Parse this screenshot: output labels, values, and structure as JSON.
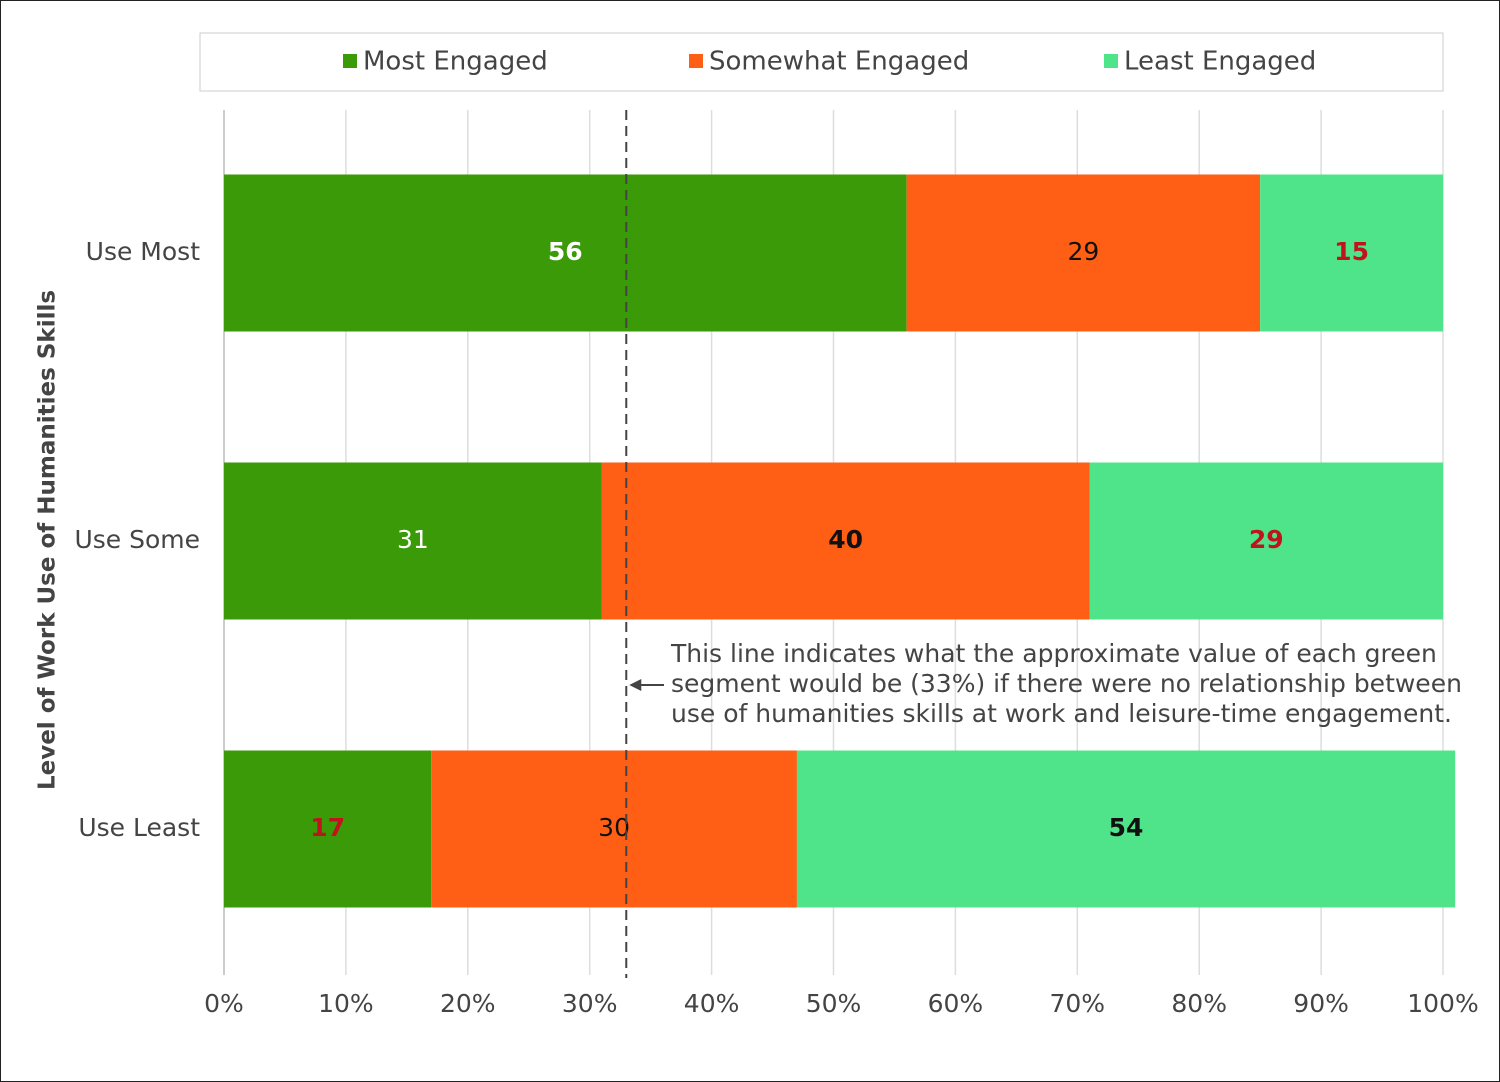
{
  "chart_data": {
    "type": "stacked-bar-horizontal",
    "y_axis_label": "Level of Work Use of Humanities Skills",
    "categories": [
      "Use Most",
      "Use Some",
      "Use Least"
    ],
    "series": [
      {
        "name": "Most Engaged",
        "color": "#3a9a08",
        "values": [
          56,
          31,
          17
        ],
        "label_colors": [
          "#ffffff",
          "#ffffff",
          "#c0141c"
        ],
        "label_bold": [
          true,
          false,
          true
        ]
      },
      {
        "name": "Somewhat Engaged",
        "color": "#ff5f14",
        "values": [
          29,
          40,
          30
        ],
        "label_colors": [
          "#111111",
          "#111111",
          "#111111"
        ],
        "label_bold": [
          false,
          true,
          false
        ]
      },
      {
        "name": "Least Engaged",
        "color": "#50e48a",
        "values": [
          15,
          29,
          54
        ],
        "label_colors": [
          "#c0141c",
          "#c0141c",
          "#111111"
        ],
        "label_bold": [
          true,
          true,
          true
        ]
      }
    ],
    "xlim": [
      0,
      100
    ],
    "xticks": [
      {
        "value": 0,
        "label": "0%"
      },
      {
        "value": 10,
        "label": "10%"
      },
      {
        "value": 20,
        "label": "20%"
      },
      {
        "value": 30,
        "label": "30%"
      },
      {
        "value": 40,
        "label": "40%"
      },
      {
        "value": 50,
        "label": "50%"
      },
      {
        "value": 60,
        "label": "60%"
      },
      {
        "value": 70,
        "label": "70%"
      },
      {
        "value": 80,
        "label": "80%"
      },
      {
        "value": 90,
        "label": "90%"
      },
      {
        "value": 100,
        "label": "100%"
      }
    ],
    "grid": true,
    "legend": "top",
    "reference_line": {
      "value": 33,
      "annotation_lines": [
        "This line indicates what the approximate value of each green",
        "segment would be (33%) if there were no relationship between",
        "use of humanities skills at work and leisure-time engagement."
      ]
    }
  }
}
